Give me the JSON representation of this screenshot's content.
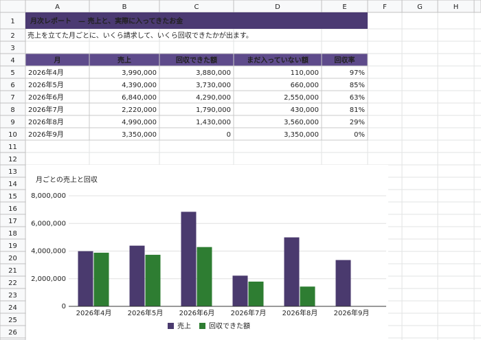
{
  "columns": [
    "A",
    "B",
    "C",
    "D",
    "E",
    "F",
    "G",
    "H"
  ],
  "row_numbers": [
    1,
    2,
    3,
    4,
    5,
    6,
    7,
    8,
    9,
    10,
    11,
    12,
    13,
    14,
    15,
    16,
    17,
    18,
    19,
    20,
    21,
    22,
    23,
    24,
    25,
    26
  ],
  "sheet": {
    "title": "月次レポート　— 売上と、実際に入ってきたお金",
    "subtitle": "売上を立てた月ごとに、いくら請求して、いくら回収できたかが出ます。",
    "table": {
      "header": [
        "月",
        "売上",
        "回収できた額",
        "まだ入っていない額",
        "回収率"
      ],
      "rows": [
        [
          "2026年4月",
          "3,990,000",
          "3,880,000",
          "110,000",
          "97%"
        ],
        [
          "2026年5月",
          "4,390,000",
          "3,730,000",
          "660,000",
          "85%"
        ],
        [
          "2026年6月",
          "6,840,000",
          "4,290,000",
          "2,550,000",
          "63%"
        ],
        [
          "2026年7月",
          "2,220,000",
          "1,790,000",
          "430,000",
          "81%"
        ],
        [
          "2026年8月",
          "4,990,000",
          "1,430,000",
          "3,560,000",
          "29%"
        ],
        [
          "2026年9月",
          "3,350,000",
          "0",
          "3,350,000",
          "0%"
        ]
      ]
    }
  },
  "chart_data": {
    "type": "bar",
    "title": "月ごとの売上と回収",
    "categories": [
      "2026年4月",
      "2026年5月",
      "2026年6月",
      "2026年7月",
      "2026年8月",
      "2026年9月"
    ],
    "series": [
      {
        "name": "売上",
        "color": "#4a3a6e",
        "values": [
          3990000,
          4390000,
          6840000,
          2220000,
          4990000,
          3350000
        ]
      },
      {
        "name": "回収できた額",
        "color": "#2e7d32",
        "values": [
          3880000,
          3730000,
          4290000,
          1790000,
          1430000,
          0
        ]
      }
    ],
    "ylim": [
      0,
      8000000
    ],
    "yticks": [
      0,
      {
        "value": 2000000,
        "label": "2,000,000"
      },
      {
        "value": 4000000,
        "label": "4,000,000"
      },
      {
        "value": 6000000,
        "label": "6,000,000"
      },
      {
        "value": 8000000,
        "label": "8,000,000"
      }
    ],
    "grid": true,
    "legend": "bottom"
  }
}
